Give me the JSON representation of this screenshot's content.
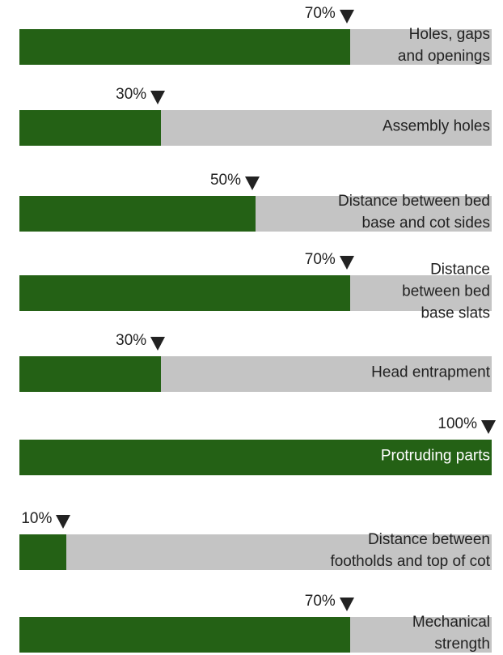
{
  "chart_data": {
    "type": "bar",
    "orientation": "horizontal",
    "categories": [
      "Holes, gaps\nand openings",
      "Assembly holes",
      "Distance between bed\nbase and cot sides",
      "Distance\nbetween bed\nbase slats",
      "Head entrapment",
      "Protruding parts",
      "Distance between\nfootholds and top of cot",
      "Mechanical\nstrength"
    ],
    "values": [
      70,
      30,
      50,
      70,
      30,
      100,
      10,
      70
    ],
    "value_labels": [
      "70%",
      "30%",
      "50%",
      "70%",
      "30%",
      "100%",
      "10%",
      "70%"
    ],
    "color": "#246115",
    "track_color": "#c4c4c4",
    "xlim": [
      0,
      100
    ]
  }
}
